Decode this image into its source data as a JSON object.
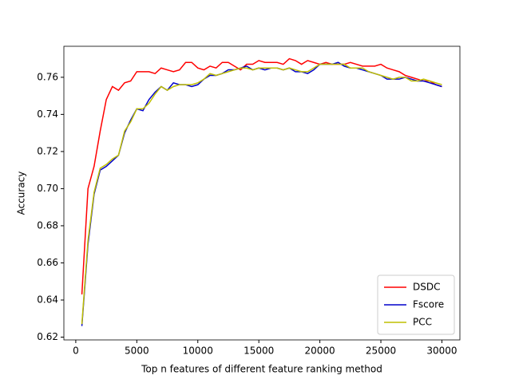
{
  "chart_data": {
    "type": "line",
    "xlabel": "Top n features of different feature ranking method",
    "ylabel": "Accuracy",
    "x": [
      500,
      1000,
      1500,
      2000,
      2500,
      3000,
      3500,
      4000,
      4500,
      5000,
      5500,
      6000,
      6500,
      7000,
      7500,
      8000,
      8500,
      9000,
      9500,
      10000,
      10500,
      11000,
      11500,
      12000,
      12500,
      13000,
      13500,
      14000,
      14500,
      15000,
      15500,
      16000,
      16500,
      17000,
      17500,
      18000,
      18500,
      19000,
      19500,
      20000,
      20500,
      21000,
      21500,
      22000,
      22500,
      23000,
      23500,
      24000,
      24500,
      25000,
      25500,
      26000,
      26500,
      27000,
      27500,
      28000,
      28500,
      29000,
      29500,
      30000
    ],
    "series": [
      {
        "name": "DSDC",
        "color": "#ff0000",
        "values": [
          0.643,
          0.7,
          0.712,
          0.731,
          0.748,
          0.755,
          0.753,
          0.757,
          0.758,
          0.763,
          0.763,
          0.763,
          0.762,
          0.765,
          0.764,
          0.763,
          0.764,
          0.768,
          0.768,
          0.765,
          0.764,
          0.766,
          0.765,
          0.768,
          0.768,
          0.766,
          0.764,
          0.767,
          0.767,
          0.769,
          0.768,
          0.768,
          0.768,
          0.767,
          0.77,
          0.769,
          0.767,
          0.769,
          0.768,
          0.767,
          0.768,
          0.767,
          0.767,
          0.767,
          0.768,
          0.767,
          0.766,
          0.766,
          0.766,
          0.767,
          0.765,
          0.764,
          0.763,
          0.761,
          0.76,
          0.759,
          0.758,
          0.758,
          0.756,
          0.755
        ]
      },
      {
        "name": "Fscore",
        "color": "#0000cc",
        "values": [
          0.626,
          0.67,
          0.697,
          0.71,
          0.712,
          0.715,
          0.718,
          0.73,
          0.737,
          0.743,
          0.742,
          0.748,
          0.752,
          0.755,
          0.753,
          0.757,
          0.756,
          0.756,
          0.755,
          0.756,
          0.759,
          0.761,
          0.761,
          0.762,
          0.764,
          0.764,
          0.765,
          0.766,
          0.764,
          0.765,
          0.764,
          0.765,
          0.765,
          0.764,
          0.765,
          0.763,
          0.763,
          0.762,
          0.764,
          0.767,
          0.767,
          0.767,
          0.768,
          0.766,
          0.765,
          0.765,
          0.764,
          0.763,
          0.762,
          0.761,
          0.759,
          0.759,
          0.759,
          0.76,
          0.759,
          0.758,
          0.758,
          0.757,
          0.756,
          0.755
        ]
      },
      {
        "name": "PCC",
        "color": "#bfbf00",
        "values": [
          0.627,
          0.672,
          0.698,
          0.711,
          0.713,
          0.716,
          0.718,
          0.731,
          0.736,
          0.743,
          0.743,
          0.746,
          0.751,
          0.755,
          0.753,
          0.755,
          0.756,
          0.756,
          0.756,
          0.757,
          0.759,
          0.762,
          0.761,
          0.762,
          0.763,
          0.764,
          0.765,
          0.765,
          0.764,
          0.765,
          0.765,
          0.765,
          0.765,
          0.764,
          0.765,
          0.764,
          0.763,
          0.763,
          0.765,
          0.767,
          0.767,
          0.767,
          0.767,
          0.767,
          0.765,
          0.765,
          0.765,
          0.763,
          0.762,
          0.761,
          0.76,
          0.759,
          0.76,
          0.76,
          0.758,
          0.758,
          0.759,
          0.758,
          0.757,
          0.756
        ]
      }
    ],
    "xlim": [
      -975,
      31475
    ],
    "ylim": [
      0.6185,
      0.7767
    ],
    "xticks": [
      0,
      5000,
      10000,
      15000,
      20000,
      25000,
      30000
    ],
    "yticks": [
      0.62,
      0.64,
      0.66,
      0.68,
      {
        "value": 0.7,
        "label": "0.70"
      },
      0.72,
      0.74,
      0.76
    ],
    "legend": "lower right"
  }
}
